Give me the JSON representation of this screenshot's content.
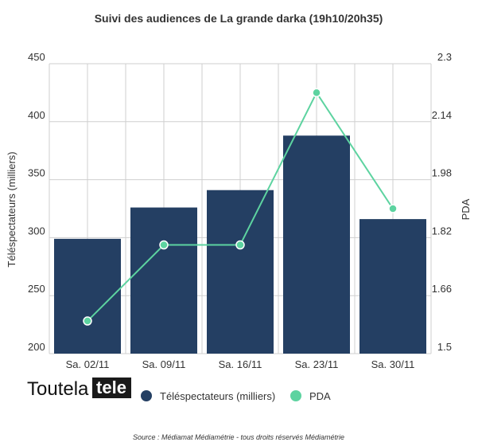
{
  "chart_data": {
    "type": "bar",
    "title": "Suivi des audiences de La grande darka (19h10/20h35)",
    "categories": [
      "Sa. 02/11",
      "Sa. 09/11",
      "Sa. 16/11",
      "Sa. 23/11",
      "Sa. 30/11"
    ],
    "series": [
      {
        "name": "Téléspectateurs (milliers)",
        "type": "bar",
        "axis": "left",
        "color": "#243f63",
        "values": [
          299,
          326,
          341,
          388,
          316
        ]
      },
      {
        "name": "PDA",
        "type": "line",
        "axis": "right",
        "color": "#5dd3a0",
        "values": [
          1.59,
          1.8,
          1.8,
          2.22,
          1.9
        ]
      }
    ],
    "ylabel": "Téléspectateurs (milliers)",
    "y2label": "PDA",
    "ylim": [
      200,
      450
    ],
    "y2lim": [
      1.5,
      2.3
    ],
    "yticks": [
      "200",
      "250",
      "300",
      "350",
      "400",
      "450"
    ],
    "y2ticks": [
      "1.5",
      "1.66",
      "1.82",
      "1.98",
      "2.14",
      "2.3"
    ],
    "grid": true,
    "legend": "bottom"
  },
  "logo": {
    "part1": "Toutela",
    "part2": "tele"
  },
  "source": "Source : Médiamat Médiamétrie - tous droits réservés Médiamétrie"
}
